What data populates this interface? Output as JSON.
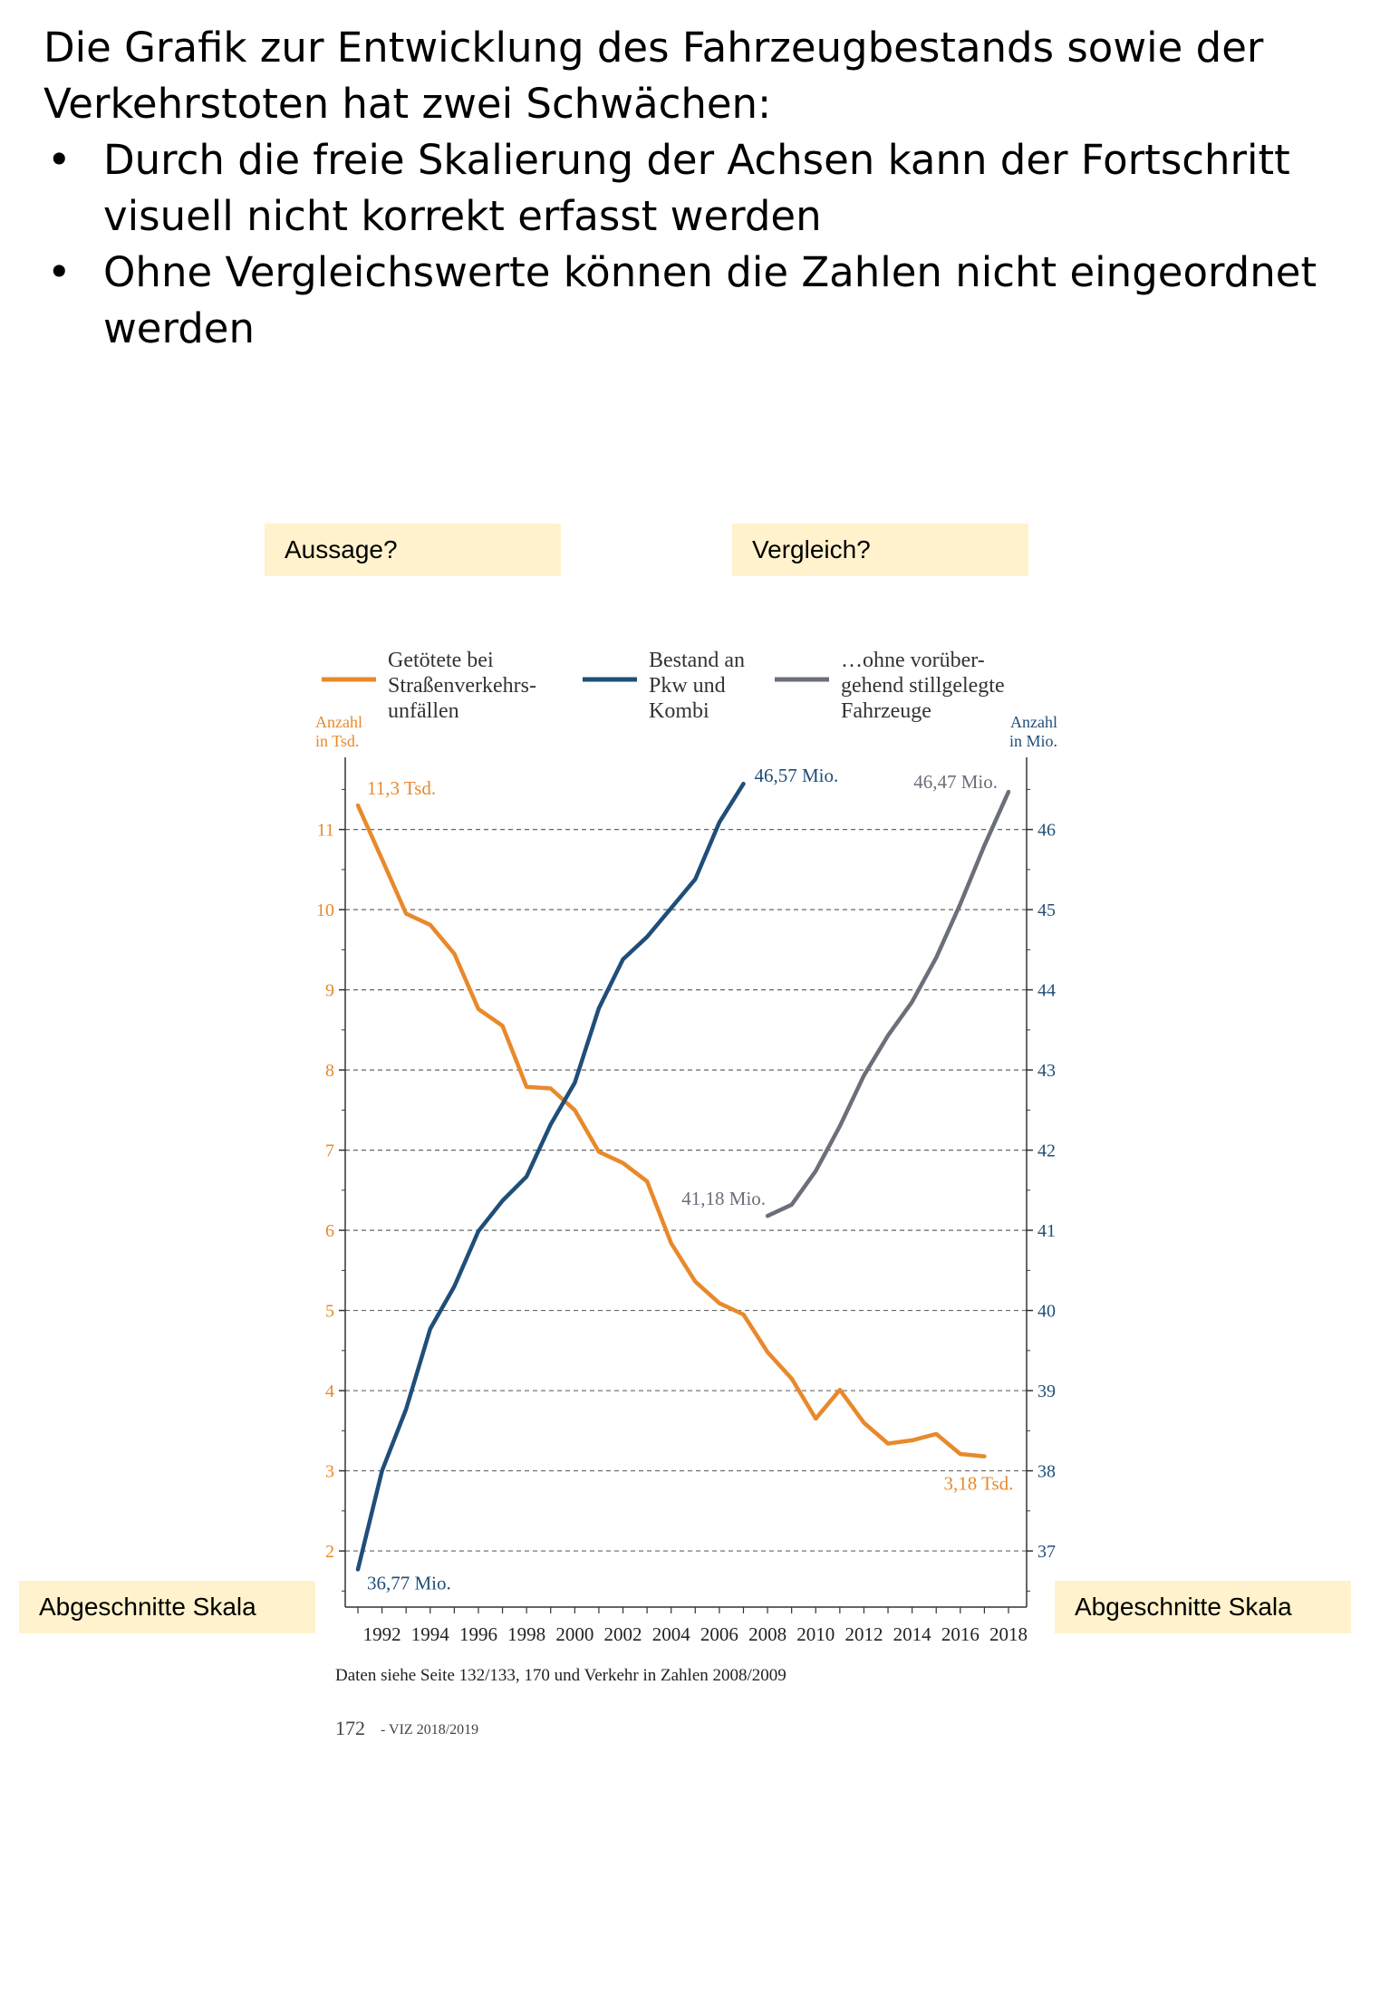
{
  "slide": {
    "intro": "Die Grafik zur Entwicklung des Fahrzeugbestands sowie der Verkehrstoten hat zwei Schwächen:",
    "bullets": [
      "Durch die freie Skalierung der Achsen kann der Fortschritt visuell nicht korrekt erfasst werden",
      "Ohne Vergleichswerte können die Zahlen nicht eingeordnet werden"
    ]
  },
  "notes": {
    "aussage": "Aussage?",
    "vergleich": "Vergleich?",
    "skala_left": "Abgeschnitte Skala",
    "skala_right": "Abgeschnitte Skala"
  },
  "colors": {
    "orange": "#e8892b",
    "blue": "#1f4e79",
    "gray": "#6b6f7a",
    "note_bg": "#fff2cc"
  },
  "chart_data": {
    "type": "line",
    "legend": [
      {
        "line1": "Getötete bei",
        "line2": "Straßenverkehrs-",
        "line3": "unfällen",
        "color": "#e8892b"
      },
      {
        "line1": "Bestand an",
        "line2": "Pkw und",
        "line3": "Kombi",
        "color": "#1f4e79"
      },
      {
        "line1": "…ohne vorüber-",
        "line2": "gehend stillgelegte",
        "line3": "Fahrzeuge",
        "color": "#6b6f7a"
      }
    ],
    "left_axis": {
      "line1": "Anzahl",
      "line2": "in Tsd.",
      "ticks": [
        2,
        3,
        4,
        5,
        6,
        7,
        8,
        9,
        10,
        11
      ],
      "range": [
        1.3,
        11.9
      ]
    },
    "right_axis": {
      "line1": "Anzahl",
      "line2": "in Mio.",
      "ticks": [
        37,
        38,
        39,
        40,
        41,
        42,
        43,
        44,
        45,
        46
      ],
      "range": [
        36.3,
        46.9
      ]
    },
    "x_ticks": [
      "1992",
      "1994",
      "1996",
      "1998",
      "2000",
      "2002",
      "2004",
      "2006",
      "2008",
      "2010",
      "2012",
      "2014",
      "2016",
      "2018"
    ],
    "x_range": [
      1991,
      2018
    ],
    "series": [
      {
        "axis": "left",
        "color": "#e8892b",
        "x": [
          1991,
          1992,
          1993,
          1994,
          1995,
          1996,
          1997,
          1998,
          1999,
          2000,
          2001,
          2002,
          2003,
          2004,
          2005,
          2006,
          2007,
          2008,
          2009,
          2010,
          2011,
          2012,
          2013,
          2014,
          2015,
          2016,
          2017
        ],
        "y": [
          11.3,
          10.63,
          9.95,
          9.81,
          9.45,
          8.76,
          8.55,
          7.79,
          7.77,
          7.5,
          6.98,
          6.84,
          6.61,
          5.84,
          5.36,
          5.09,
          4.95,
          4.48,
          4.15,
          3.65,
          4.01,
          3.6,
          3.34,
          3.38,
          3.46,
          3.21,
          3.18
        ]
      },
      {
        "axis": "right",
        "color": "#1f4e79",
        "x": [
          1991,
          1992,
          1993,
          1994,
          1995,
          1996,
          1997,
          1998,
          1999,
          2000,
          2001,
          2002,
          2003,
          2004,
          2005,
          2006,
          2007
        ],
        "y": [
          36.77,
          38.0,
          38.77,
          39.77,
          40.3,
          40.99,
          41.37,
          41.67,
          42.32,
          42.84,
          43.77,
          44.38,
          44.66,
          45.02,
          45.38,
          46.09,
          46.57
        ]
      },
      {
        "axis": "right",
        "color": "#6b6f7a",
        "x": [
          2008,
          2009,
          2010,
          2011,
          2012,
          2013,
          2014,
          2015,
          2016,
          2017,
          2018
        ],
        "y": [
          41.18,
          41.32,
          41.74,
          42.3,
          42.93,
          43.43,
          43.85,
          44.4,
          45.07,
          45.8,
          46.47
        ]
      }
    ],
    "annotations": {
      "orange_start": "11,3 Tsd.",
      "orange_end": "3,18 Tsd.",
      "blue_start": "36,77 Mio.",
      "blue_end": "46,57 Mio.",
      "gray_start": "41,18 Mio.",
      "gray_end": "46,47 Mio."
    },
    "source": "Daten siehe Seite 132/133, 170 und Verkehr in Zahlen 2008/2009",
    "page_number": "172",
    "page_suffix": "- VIZ 2018/2019"
  }
}
